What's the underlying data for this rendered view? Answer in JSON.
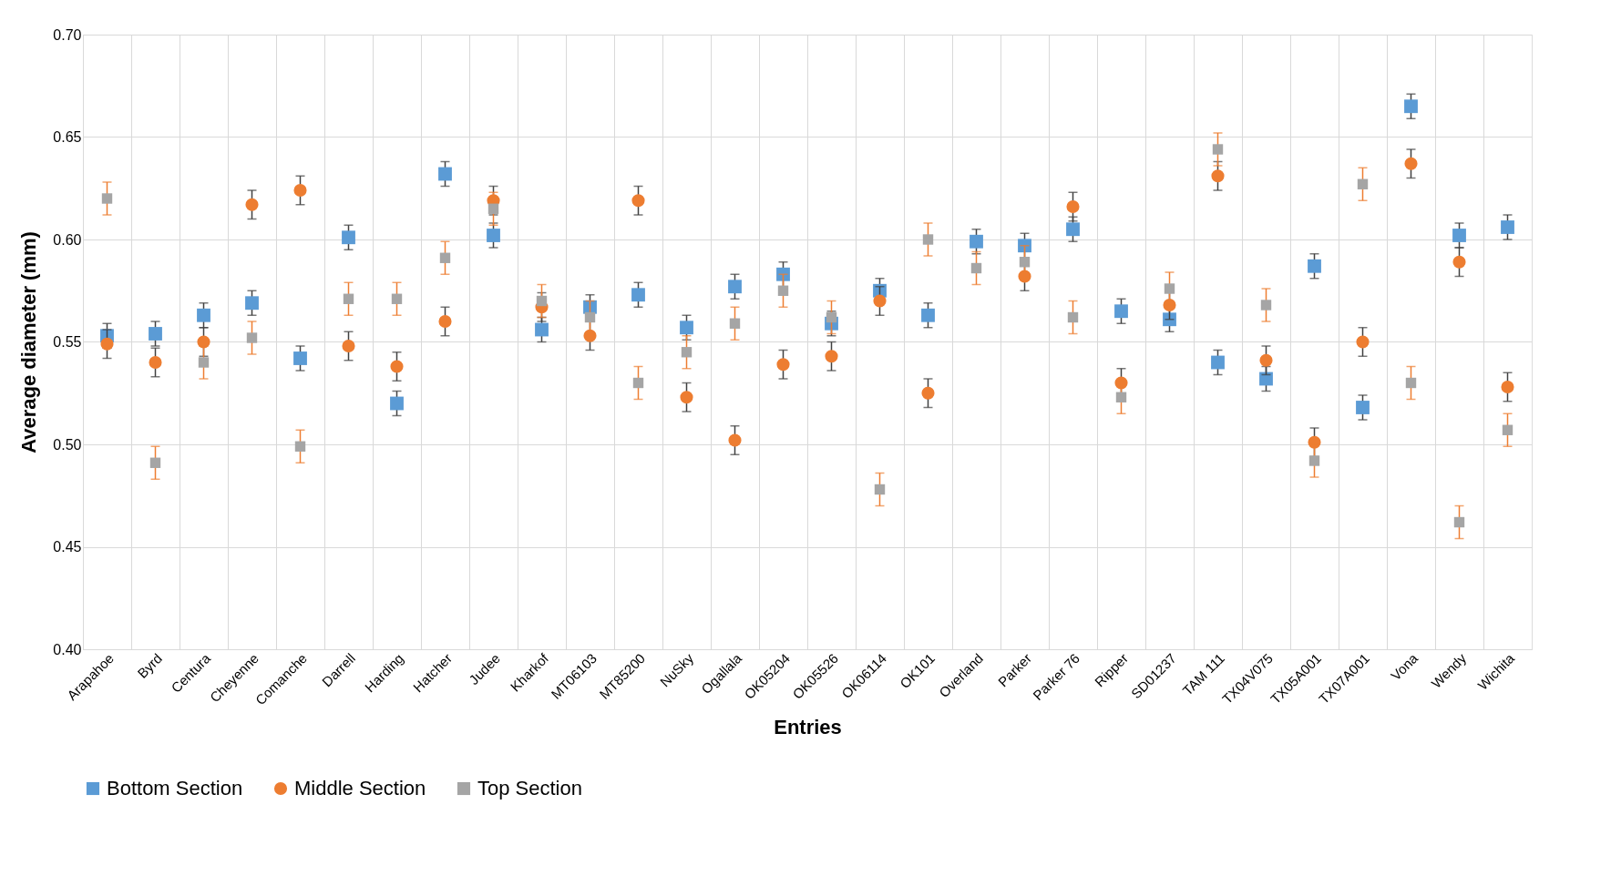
{
  "chart_data": {
    "type": "scatter",
    "xlabel": "Entries",
    "ylabel": "Average diameter (mm)",
    "categories": [
      "Arapahoe",
      "Byrd",
      "Centura",
      "Cheyenne",
      "Comanche",
      "Darrell",
      "Harding",
      "Hatcher",
      "Judee",
      "Kharkof",
      "MT06103",
      "MT85200",
      "NuSky",
      "Ogallala",
      "OK05204",
      "OK05526",
      "OK06114",
      "OK101",
      "Overland",
      "Parker",
      "Parker 76",
      "Ripper",
      "SD01237",
      "TAM 111",
      "TX04V075",
      "TX05A001",
      "TX07A001",
      "Vona",
      "Wendy",
      "Wichita"
    ],
    "series": [
      {
        "name": "Bottom Section",
        "color": "#5b9bd5",
        "marker": "square",
        "values": [
          0.553,
          0.554,
          0.563,
          0.569,
          0.542,
          0.601,
          0.52,
          0.632,
          0.602,
          0.556,
          0.567,
          0.573,
          0.557,
          0.577,
          0.583,
          0.559,
          0.575,
          0.563,
          0.599,
          0.597,
          0.605,
          0.565,
          0.561,
          0.54,
          0.532,
          0.587,
          0.518,
          0.665,
          0.602,
          0.606
        ],
        "errors": [
          0.006,
          0.006,
          0.006,
          0.006,
          0.006,
          0.006,
          0.006,
          0.006,
          0.006,
          0.006,
          0.006,
          0.006,
          0.006,
          0.006,
          0.006,
          0.006,
          0.006,
          0.006,
          0.006,
          0.006,
          0.006,
          0.006,
          0.006,
          0.006,
          0.006,
          0.006,
          0.006,
          0.006,
          0.006,
          0.006
        ]
      },
      {
        "name": "Middle Section",
        "color": "#ed7d31",
        "marker": "circle",
        "values": [
          0.549,
          0.54,
          0.55,
          0.617,
          0.624,
          0.548,
          0.538,
          0.56,
          0.619,
          0.567,
          0.553,
          0.619,
          0.523,
          0.502,
          0.539,
          0.543,
          0.57,
          0.525,
          null,
          0.582,
          0.616,
          0.53,
          0.568,
          0.631,
          0.541,
          0.501,
          0.55,
          0.637,
          0.589,
          0.528
        ],
        "errors": [
          0.007,
          0.007,
          0.007,
          0.007,
          0.007,
          0.007,
          0.007,
          0.007,
          0.007,
          0.007,
          0.007,
          0.007,
          0.007,
          0.007,
          0.007,
          0.007,
          0.007,
          0.007,
          null,
          0.007,
          0.007,
          0.007,
          0.007,
          0.007,
          0.007,
          0.007,
          0.007,
          0.007,
          0.007,
          0.007
        ]
      },
      {
        "name": "Top Section",
        "color": "#a5a5a5",
        "marker": "square",
        "values": [
          0.62,
          0.491,
          0.54,
          0.552,
          0.499,
          0.571,
          0.571,
          0.591,
          0.615,
          0.57,
          0.562,
          0.53,
          0.545,
          0.559,
          0.575,
          0.562,
          0.478,
          0.6,
          0.586,
          0.589,
          0.562,
          0.523,
          0.576,
          0.644,
          0.568,
          0.492,
          0.627,
          0.53,
          0.462,
          0.507
        ],
        "errors": [
          0.008,
          0.008,
          0.008,
          0.008,
          0.008,
          0.008,
          0.008,
          0.008,
          0.008,
          0.008,
          0.008,
          0.008,
          0.008,
          0.008,
          0.008,
          0.008,
          0.008,
          0.008,
          0.008,
          0.008,
          0.008,
          0.008,
          0.008,
          0.008,
          0.008,
          0.008,
          0.008,
          0.008,
          0.008,
          0.008
        ]
      }
    ],
    "ylim": [
      0.4,
      0.7
    ],
    "yticks": [
      {
        "value": 0.4,
        "label": "0.40"
      },
      {
        "value": 0.45,
        "label": "0.45"
      },
      {
        "value": 0.5,
        "label": "0.50"
      },
      {
        "value": 0.55,
        "label": "0.55"
      },
      {
        "value": 0.6,
        "label": "0.60"
      },
      {
        "value": 0.65,
        "label": "0.65"
      },
      {
        "value": 0.7,
        "label": "0.70"
      }
    ],
    "grid": true,
    "legend": "bottom"
  }
}
